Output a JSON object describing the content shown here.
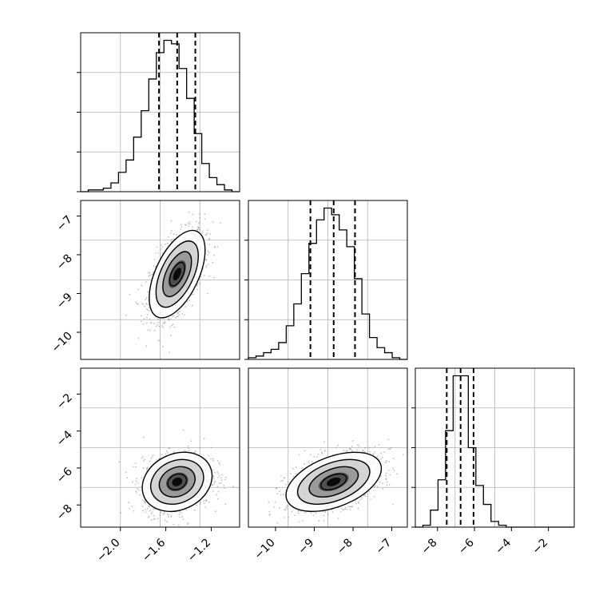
{
  "chart_data": {
    "type": "corner",
    "parameters": [
      {
        "xlim": [
          -2.35,
          -0.95
        ],
        "hist": [
          0,
          1,
          1,
          2,
          5,
          11,
          18,
          31,
          46,
          64,
          79,
          86,
          84,
          70,
          53,
          33,
          16,
          8,
          4,
          1,
          0
        ],
        "quantiles": [
          -1.66,
          -1.5,
          -1.34
        ]
      },
      {
        "xlim": [
          -10.7,
          -6.6
        ],
        "hist": [
          1,
          2,
          4,
          6,
          10,
          20,
          33,
          51,
          69,
          83,
          90,
          86,
          77,
          67,
          48,
          27,
          13,
          7,
          4,
          1,
          0
        ],
        "quantiles": [
          -9.1,
          -8.5,
          -7.95
        ]
      },
      {
        "xlim": [
          -9.2,
          -0.6
        ],
        "hist": [
          0,
          1,
          9,
          25,
          51,
          80,
          80,
          42,
          22,
          12,
          3,
          1,
          0,
          0,
          0,
          0,
          0,
          0,
          0,
          0,
          0
        ],
        "quantiles": [
          -7.5,
          -6.75,
          -6.05
        ]
      }
    ],
    "pairs": [
      {
        "row": 1,
        "col": 0,
        "center": [
          -1.5,
          -8.5
        ],
        "sd": [
          0.12,
          0.55
        ],
        "corr": 0.55
      },
      {
        "row": 2,
        "col": 0,
        "center": [
          -1.5,
          -6.75
        ],
        "sd": [
          0.15,
          0.78
        ],
        "corr": 0.2
      },
      {
        "row": 2,
        "col": 1,
        "center": [
          -8.5,
          -6.75
        ],
        "sd": [
          0.6,
          0.78
        ],
        "corr": 0.45
      }
    ],
    "ticks": {
      "x0": [
        "−2.0",
        "−1.6",
        "−1.2"
      ],
      "x0_values": [
        -2.0,
        -1.6,
        -1.2
      ],
      "x1": [
        "−10",
        "−9",
        "−8",
        "−7"
      ],
      "x1_values": [
        -10,
        -9,
        -8,
        -7
      ],
      "x2": [
        "−8",
        "−6",
        "−4",
        "−2"
      ],
      "x2_values": [
        -8,
        -6,
        -4,
        -2
      ],
      "y1": [
        "−7",
        "−8",
        "−9",
        "−10"
      ],
      "y1_values": [
        -7,
        -8,
        -9,
        -10
      ],
      "y2": [
        "−2",
        "−4",
        "−6",
        "−8"
      ],
      "y2_values": [
        -2,
        -4,
        -6,
        -8
      ]
    }
  }
}
